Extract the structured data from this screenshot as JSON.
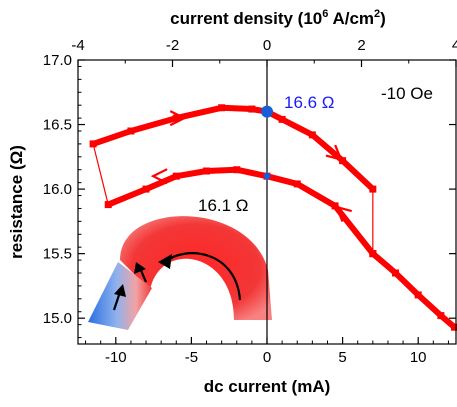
{
  "chart_data": {
    "type": "line",
    "xlabel": "dc current (mA)",
    "ylabel": "resistance (Ω)",
    "x2label_prefix": "current density (10",
    "x2label_exp": "6",
    "x2label_mid": " A/cm",
    "x2label_sq": "2",
    "x2label_suffix": ")",
    "xlim": [
      -12.5,
      12.5
    ],
    "ylim": [
      14.8,
      17.0
    ],
    "x2lim": [
      -4.0,
      4.0
    ],
    "xticks": [
      -10,
      -5,
      0,
      5,
      10
    ],
    "xtick_labels": [
      "-10",
      "-5",
      "0",
      "5",
      "10"
    ],
    "yticks": [
      15.0,
      15.5,
      16.0,
      16.5,
      17.0
    ],
    "ytick_labels": [
      "15.0",
      "15.5",
      "16.0",
      "16.5",
      "17.0"
    ],
    "x2ticks": [
      -4,
      -2,
      0,
      2,
      4
    ],
    "x2tick_labels": [
      "-4",
      "-2",
      "0",
      "2",
      "4"
    ],
    "series": [
      {
        "values_xy": [
          [
            -11.5,
            16.35
          ],
          [
            -9,
            16.45
          ],
          [
            -6,
            16.55
          ],
          [
            -3,
            16.63
          ],
          [
            -1,
            16.62
          ],
          [
            0,
            16.6
          ],
          [
            1,
            16.54
          ],
          [
            3,
            16.42
          ],
          [
            5,
            16.22
          ],
          [
            7,
            16.0
          ]
        ],
        "color": "#ff0000"
      },
      {
        "values_xy": [
          [
            7,
            15.5
          ],
          [
            4.5,
            15.87
          ],
          [
            2,
            16.04
          ],
          [
            0,
            16.1
          ],
          [
            -2,
            16.15
          ],
          [
            -4,
            16.14
          ],
          [
            -6,
            16.1
          ],
          [
            -8,
            16.0
          ],
          [
            -10.5,
            15.88
          ]
        ],
        "color": "#ff0000"
      },
      {
        "values_xy": [
          [
            7,
            15.5
          ],
          [
            8.5,
            15.35
          ],
          [
            10,
            15.18
          ],
          [
            11.5,
            15.02
          ],
          [
            12.4,
            14.93
          ]
        ],
        "color": "#ff0000"
      }
    ],
    "jumps": [
      {
        "values_xy": [
          [
            7,
            16.0
          ],
          [
            7,
            15.5
          ]
        ]
      },
      {
        "values_xy": [
          [
            -11.5,
            16.35
          ],
          [
            -10.5,
            15.88
          ]
        ]
      }
    ],
    "arrows": [
      {
        "at": [
          -6,
          16.55
        ],
        "direction": "right"
      },
      {
        "at": [
          4.5,
          16.27
        ],
        "direction": "down-right"
      },
      {
        "at": [
          5,
          15.82
        ],
        "direction": "up-left"
      },
      {
        "at": [
          -7,
          16.1
        ],
        "direction": "left"
      }
    ],
    "markers": [
      {
        "x": 0,
        "y": 16.6,
        "color": "#1a5bd6",
        "size": "large"
      },
      {
        "x": 0,
        "y": 16.1,
        "color": "#1a5bd6",
        "size": "small"
      }
    ],
    "vline_x": 0,
    "annotations": {
      "field": "-10 Oe",
      "high_r": "16.6 Ω",
      "low_r": "16.1 Ω"
    },
    "colors": {
      "data": "#ff0000",
      "high_label": "#1a1aff",
      "marker": "#1a5bd6",
      "inset_red": "#ee2020",
      "inset_blue": "#2f7be0"
    },
    "grid": false
  }
}
